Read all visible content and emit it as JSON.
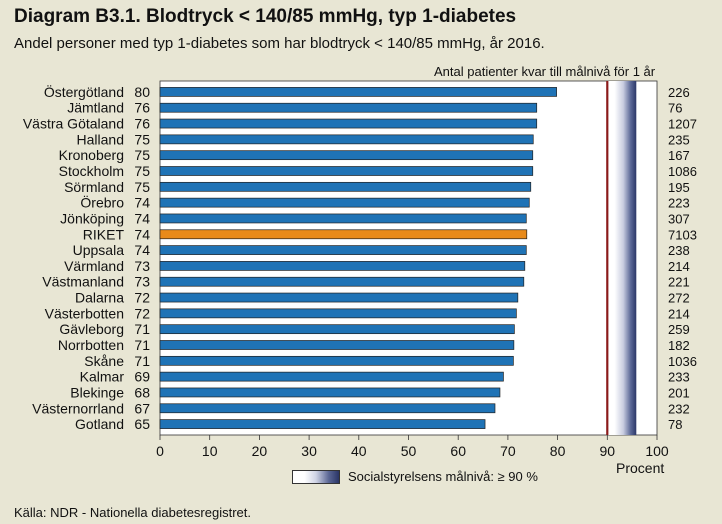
{
  "title": "Diagram B3.1. Blodtryck < 140/85 mmHg, typ 1-diabetes",
  "subtitle": "Andel personer med typ 1-diabetes som har blodtryck < 140/85 mmHg, år 2016.",
  "right_header": "Antal patienter kvar till målnivå för 1 år",
  "x_unit": "Procent",
  "legend_label": "Socialstyrelsens målnivå: ≥ 90 %",
  "source": "Källa: NDR - Nationella diabetesregistret.",
  "colors": {
    "bar": "#1f73b6",
    "highlight": "#e88a1a",
    "target_line": "#8b1a1a",
    "background": "#e8e6d4"
  },
  "chart_data": {
    "type": "bar",
    "orientation": "horizontal",
    "categories": [
      "Östergötland",
      "Jämtland",
      "Västra Götaland",
      "Halland",
      "Kronoberg",
      "Stockholm",
      "Sörmland",
      "Örebro",
      "Jönköping",
      "RIKET",
      "Uppsala",
      "Värmland",
      "Västmanland",
      "Dalarna",
      "Västerbotten",
      "Gävleborg",
      "Norrbotten",
      "Skåne",
      "Kalmar",
      "Blekinge",
      "Västernorrland",
      "Gotland"
    ],
    "labels": [
      "80",
      "76",
      "76",
      "75",
      "75",
      "75",
      "75",
      "74",
      "74",
      "74",
      "74",
      "73",
      "73",
      "72",
      "72",
      "71",
      "71",
      "71",
      "69",
      "68",
      "67",
      "65"
    ],
    "values": [
      79.8,
      75.8,
      75.8,
      75.1,
      75.0,
      75.0,
      74.6,
      74.3,
      73.7,
      73.8,
      73.7,
      73.4,
      73.2,
      72.0,
      71.7,
      71.3,
      71.2,
      71.1,
      69.1,
      68.4,
      67.4,
      65.4
    ],
    "highlight_category": "RIKET",
    "patients_remaining": [
      "226",
      "76",
      "1207",
      "235",
      "167",
      "1086",
      "195",
      "223",
      "307",
      "7103",
      "238",
      "214",
      "221",
      "272",
      "214",
      "259",
      "182",
      "1036",
      "233",
      "201",
      "232",
      "78"
    ],
    "xlim": [
      0,
      100
    ],
    "xticks": [
      "0",
      "10",
      "20",
      "30",
      "40",
      "50",
      "60",
      "70",
      "80",
      "90",
      "100"
    ],
    "target": 90,
    "grid": "none"
  }
}
